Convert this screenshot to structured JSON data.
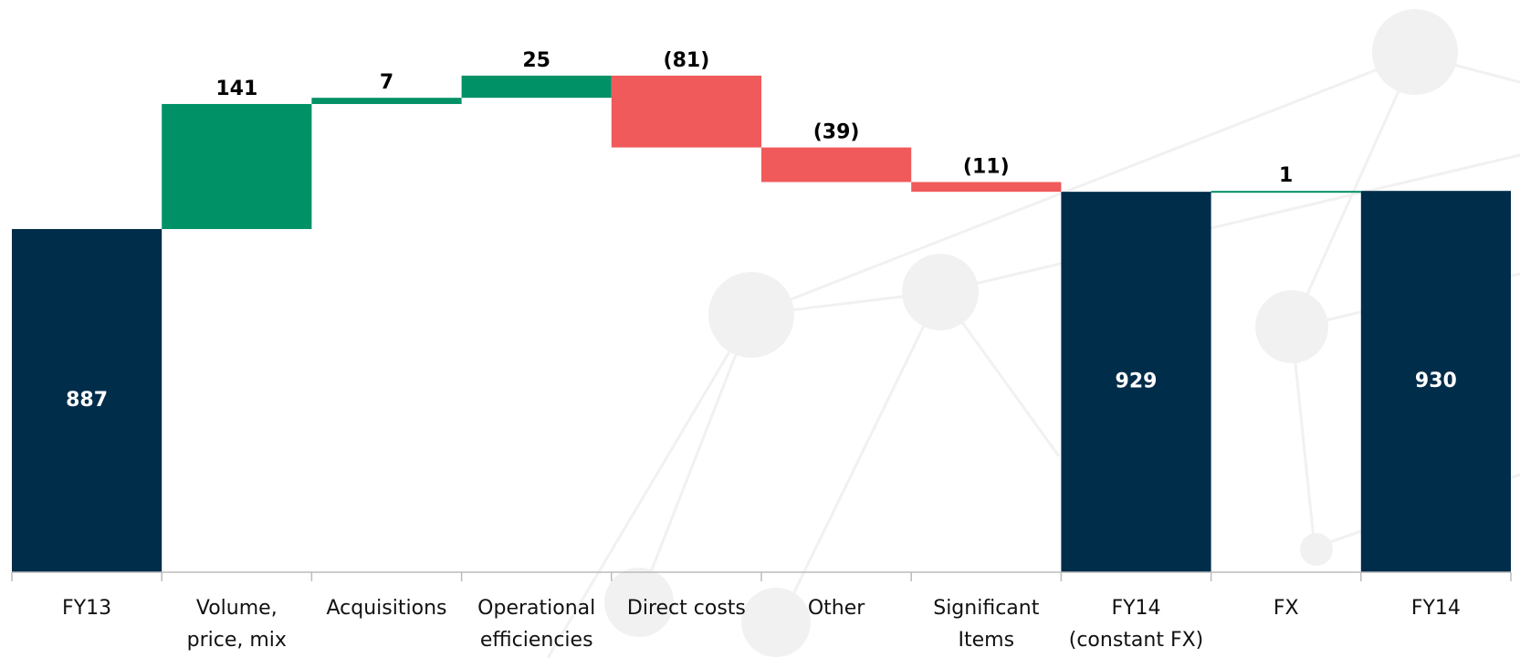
{
  "chart_data": {
    "type": "waterfall",
    "categories": [
      [
        "FY13"
      ],
      [
        "Volume,",
        "price, mix"
      ],
      [
        "Acquisitions"
      ],
      [
        "Operational",
        "efficiencies"
      ],
      [
        "Direct costs"
      ],
      [
        "Other"
      ],
      [
        "Significant",
        "Items"
      ],
      [
        "FY14",
        "(constant FX)"
      ],
      [
        "FX"
      ],
      [
        "FY14"
      ]
    ],
    "values": [
      887,
      141,
      7,
      25,
      -81,
      -39,
      -11,
      929,
      1,
      930
    ],
    "value_labels": [
      "887",
      "141",
      "7",
      "25",
      "(81)",
      "(39)",
      "(11)",
      "929",
      "1",
      "930"
    ],
    "measures": [
      "total",
      "relative",
      "relative",
      "relative",
      "relative",
      "relative",
      "relative",
      "total",
      "relative",
      "total"
    ],
    "colors": {
      "total": "#002d4a",
      "increase": "#009166",
      "decrease": "#f05a5a"
    },
    "ylim": [
      500,
      1100
    ]
  }
}
